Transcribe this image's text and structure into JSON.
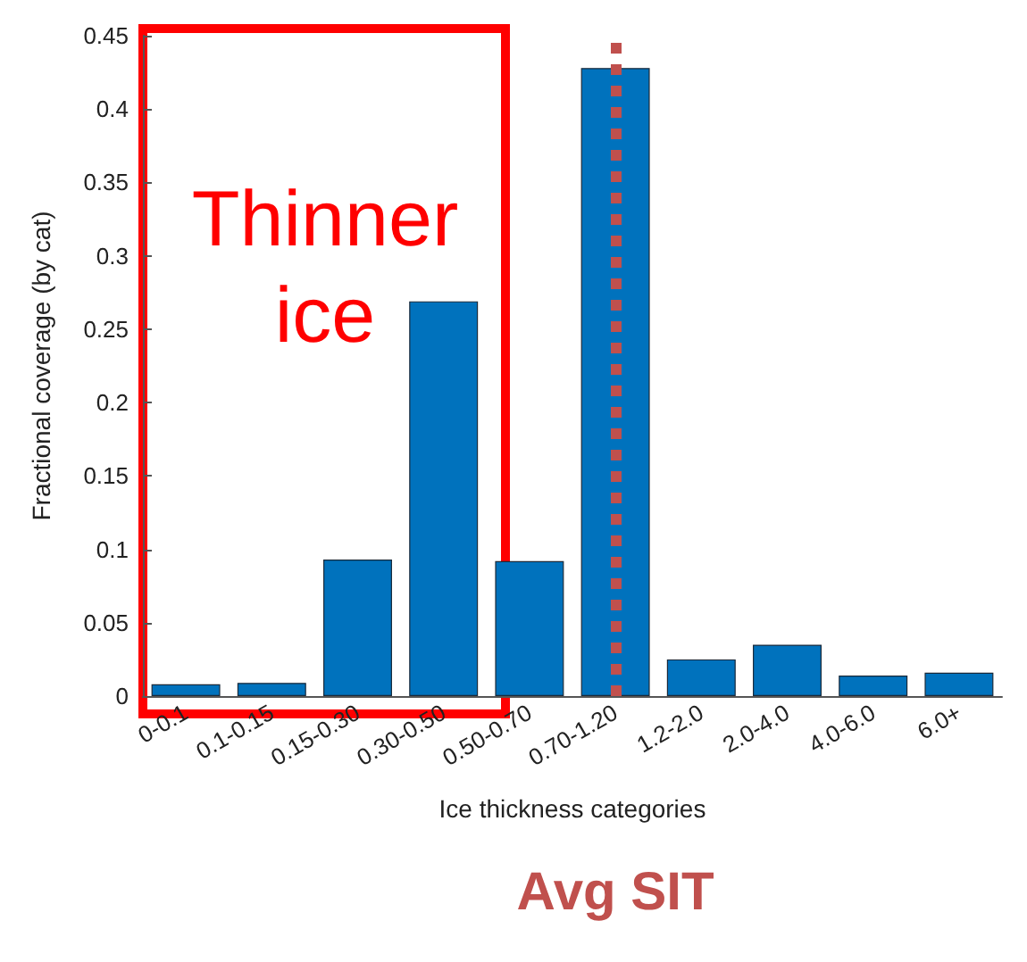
{
  "chart_data": {
    "type": "bar",
    "xlabel": "Ice thickness categories",
    "ylabel": "Fractional coverage (by cat)",
    "categories": [
      "0-0.1",
      "0.1-0.15",
      "0.15-0.30",
      "0.30-0.50",
      "0.50-0.70",
      "0.70-1.20",
      "1.2-2.0",
      "2.0-4.0",
      "4.0-6.0",
      "6.0+"
    ],
    "values": [
      0.008,
      0.009,
      0.093,
      0.269,
      0.092,
      0.428,
      0.025,
      0.035,
      0.014,
      0.016
    ],
    "color": "#0072bd",
    "ylim": [
      0,
      0.45
    ],
    "yticks": [
      0,
      0.05,
      0.1,
      0.15,
      0.2,
      0.25,
      0.3,
      0.35,
      0.4,
      0.45
    ],
    "ref_lines": [
      {
        "axis": "x",
        "value": "0.70-1.20",
        "label": "Avg SIT",
        "color": "#c0504d",
        "line_style": "dotted"
      }
    ],
    "annotations": [
      "Thinner ice"
    ]
  }
}
